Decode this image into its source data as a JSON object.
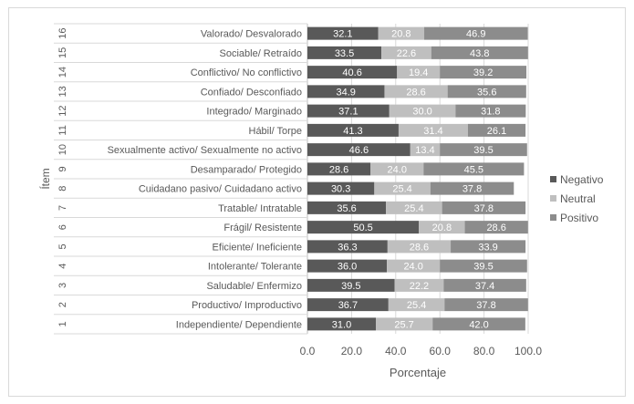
{
  "chart_data": {
    "type": "bar",
    "orientation": "horizontal",
    "stacked": true,
    "xlabel": "Porcentaje",
    "ylabel": "Ítem",
    "xlim": [
      0,
      100
    ],
    "x_ticks": [
      "0.0",
      "20.0",
      "40.0",
      "60.0",
      "80.0",
      "100.0"
    ],
    "legend_position": "right",
    "grid": "vertical",
    "items": [
      {
        "num": "16",
        "label": "Valorado/ Desvalorado"
      },
      {
        "num": "15",
        "label": "Sociable/ Retraído"
      },
      {
        "num": "14",
        "label": "Conflictivo/ No conflictivo"
      },
      {
        "num": "13",
        "label": "Confiado/ Desconfiado"
      },
      {
        "num": "12",
        "label": "Integrado/ Marginado"
      },
      {
        "num": "11",
        "label": "Hábil/ Torpe"
      },
      {
        "num": "10",
        "label": "Sexualmente activo/ Sexualmente no activo"
      },
      {
        "num": "9",
        "label": "Desamparado/ Protegido"
      },
      {
        "num": "8",
        "label": "Cuidadano pasivo/ Cuidadano activo"
      },
      {
        "num": "7",
        "label": "Tratable/ Intratable"
      },
      {
        "num": "6",
        "label": "Frágil/ Resistente"
      },
      {
        "num": "5",
        "label": "Eficiente/ Ineficiente"
      },
      {
        "num": "4",
        "label": "Intolerante/ Tolerante"
      },
      {
        "num": "3",
        "label": "Saludable/ Enfermizo"
      },
      {
        "num": "2",
        "label": "Productivo/ Improductivo"
      },
      {
        "num": "1",
        "label": "Independiente/ Dependiente"
      }
    ],
    "series": [
      {
        "name": "Negativo",
        "color": "#595959",
        "values": [
          32.1,
          33.5,
          40.6,
          34.9,
          37.1,
          41.3,
          46.6,
          28.6,
          30.3,
          35.6,
          50.5,
          36.3,
          36.0,
          39.5,
          36.7,
          31.0
        ]
      },
      {
        "name": "Neutral",
        "color": "#bfbfbf",
        "values": [
          20.8,
          22.6,
          19.4,
          28.6,
          30.0,
          31.4,
          13.4,
          24.0,
          25.4,
          25.4,
          20.8,
          28.6,
          24.0,
          22.2,
          25.4,
          25.7
        ]
      },
      {
        "name": "Positivo",
        "color": "#8c8c8c",
        "values": [
          46.9,
          43.8,
          39.2,
          35.6,
          31.8,
          26.1,
          39.5,
          45.5,
          37.8,
          37.8,
          28.6,
          33.9,
          39.5,
          37.4,
          37.8,
          42.0
        ]
      }
    ]
  }
}
